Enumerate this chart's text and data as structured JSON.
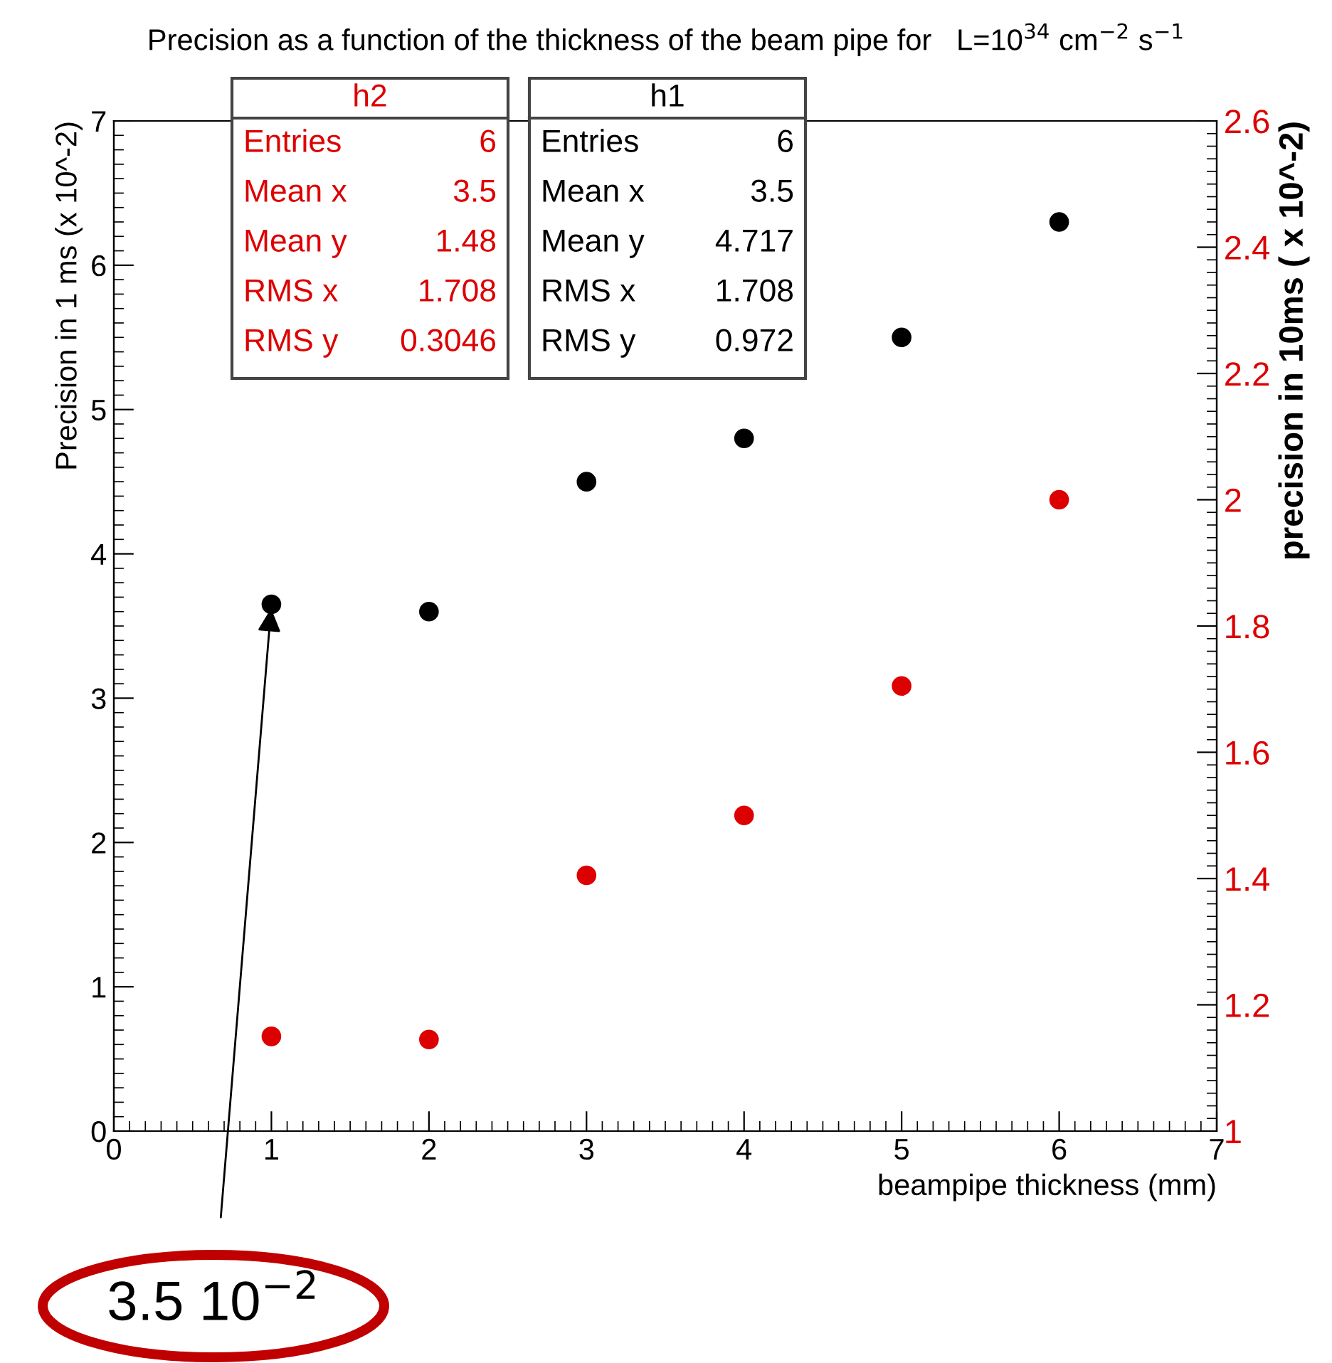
{
  "chart_data": {
    "type": "scatter",
    "title": "Precision as a function of the thickness of the beam pipe for   L=10$^{34}$ cm$^{−2}$ s$^{−1}$",
    "xlabel": "beampipe thickness (mm)",
    "ylabel": "Precision in 1 ms (x 10^-2)",
    "y2label": "precision in 10ms ( x 10^-2)",
    "x": [
      1,
      2,
      3,
      4,
      5,
      6
    ],
    "series": [
      {
        "color": "#000000",
        "values": [
          3.65,
          3.6,
          4.5,
          4.8,
          5.5,
          6.3
        ]
      },
      {
        "color": "#dd0000",
        "axis": "y2",
        "values": [
          1.15,
          1.145,
          1.405,
          1.5,
          1.705,
          2.0
        ]
      }
    ],
    "xlim": [
      0,
      7
    ],
    "xticks": [
      0,
      1,
      2,
      3,
      4,
      5,
      6,
      7
    ],
    "ylim": [
      0,
      7
    ],
    "yticks": [
      0,
      1,
      2,
      3,
      4,
      5,
      6,
      7
    ],
    "y2lim": [
      1,
      2.6
    ],
    "y2ticks": [
      1,
      {
        "value": 1.2,
        "label": "1.2"
      },
      {
        "value": 1.4,
        "label": "1.4"
      },
      {
        "value": 1.6,
        "label": "1.6"
      },
      {
        "value": 1.8,
        "label": "1.8"
      },
      2,
      {
        "value": 2.2,
        "label": "2.2"
      },
      {
        "value": 2.4,
        "label": "2.4"
      },
      {
        "value": 2.6,
        "label": "2.6"
      }
    ],
    "marker": "circle",
    "grid": false,
    "annotations": [
      "h2",
      "Entries",
      "6",
      "Mean x",
      "3.5",
      "Mean y",
      "1.48",
      "RMS x",
      "1.708",
      "RMS y",
      "0.3046",
      "h1",
      "Entries",
      "6",
      "Mean x",
      "3.5",
      "Mean y",
      "4.717",
      "RMS x",
      "1.708",
      "RMS y",
      "0.972",
      {
        "text": "3.5 10$^{−2}$",
        "x": 1,
        "y": 3.65
      }
    ]
  }
}
